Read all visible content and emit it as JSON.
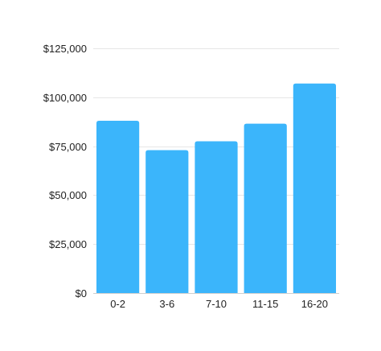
{
  "chart_data": {
    "type": "bar",
    "categories": [
      "0-2",
      "3-6",
      "7-10",
      "11-15",
      "16-20"
    ],
    "values": [
      88000,
      73000,
      77500,
      86500,
      107000
    ],
    "y_ticks": [
      0,
      25000,
      50000,
      75000,
      100000,
      125000
    ],
    "y_tick_labels": [
      "$0",
      "$25,000",
      "$50,000",
      "$75,000",
      "$100,000",
      "$125,000"
    ],
    "ylim": [
      0,
      125000
    ],
    "grid": true,
    "bar_color": "#3bb5fb",
    "grid_color": "#e6e6e6"
  }
}
